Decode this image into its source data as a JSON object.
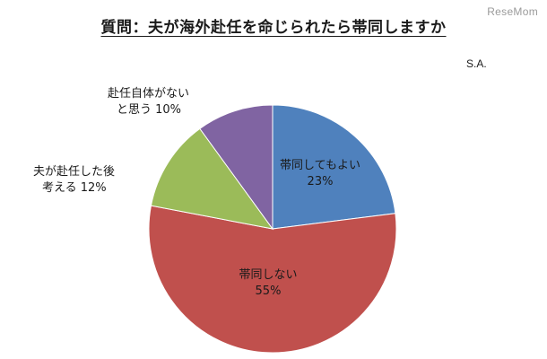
{
  "watermark": "ReseMom",
  "chart_data": {
    "type": "pie",
    "title": "質問：夫が海外赴任を命じられたら帯同しますか",
    "note": "S.A.",
    "slices": [
      {
        "label_lines": [
          "帯同してもよい",
          "23%"
        ],
        "label": "帯同してもよい",
        "value": 23,
        "color": "#4f81bd"
      },
      {
        "label_lines": [
          "帯同しない",
          "55%"
        ],
        "label": "帯同しない",
        "value": 55,
        "color": "#c0504d"
      },
      {
        "label_lines": [
          "夫が赴任した後",
          "考える 12%"
        ],
        "label": "夫が赴任した後考える",
        "value": 12,
        "color": "#9bbb59"
      },
      {
        "label_lines": [
          "赴任自体がない",
          "と思う 10%"
        ],
        "label": "赴任自体がないと思う",
        "value": 10,
        "color": "#8064a2"
      }
    ],
    "start_angle": "12 o'clock",
    "direction": "clockwise",
    "legend": "none"
  }
}
